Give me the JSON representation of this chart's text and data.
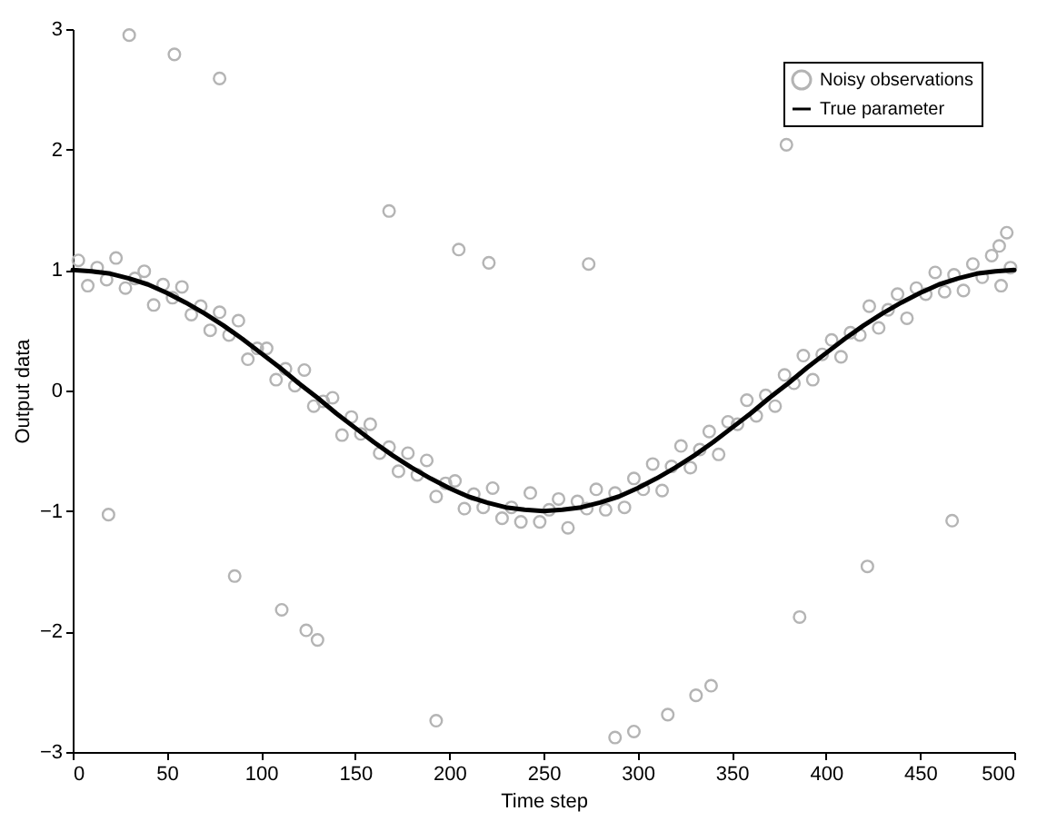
{
  "chart_data": {
    "type": "scatter",
    "xlabel": "Time step",
    "ylabel": "Output data",
    "xlim": [
      0,
      500
    ],
    "xticks": [
      0,
      50,
      100,
      150,
      200,
      250,
      300,
      350,
      400,
      450,
      500
    ],
    "ylim": [
      -3,
      3
    ],
    "yticks": [
      -3,
      -2,
      -1,
      0,
      1,
      2,
      3
    ],
    "grid": false,
    "legend": "top right",
    "line_style": "solid",
    "series": [
      {
        "name": "Noisy observations",
        "marker": "circle",
        "color": "#b4b4b4",
        "x": [
          3,
          8,
          13,
          18,
          23,
          28,
          33,
          38,
          43,
          48,
          53,
          58,
          63,
          68,
          73,
          78,
          83,
          88,
          93,
          98,
          103,
          108,
          113,
          118,
          123,
          128,
          133,
          138,
          143,
          148,
          153,
          158,
          163,
          168,
          173,
          178,
          183,
          188,
          193,
          198,
          203,
          208,
          213,
          218,
          223,
          228,
          233,
          238,
          243,
          248,
          253,
          258,
          263,
          268,
          273,
          278,
          283,
          288,
          293,
          298,
          303,
          308,
          313,
          318,
          323,
          328,
          333,
          338,
          343,
          348,
          353,
          358,
          363,
          368,
          373,
          378,
          383,
          388,
          393,
          398,
          403,
          408,
          413,
          418,
          423,
          428,
          433,
          438,
          443,
          448,
          453,
          458,
          463,
          468,
          473,
          478,
          483,
          488,
          493,
          498,
          492,
          496,
          30,
          54,
          78,
          168,
          205,
          221,
          274,
          379,
          19,
          86,
          111,
          124,
          130,
          193,
          288,
          298,
          316,
          331,
          339,
          386,
          422,
          467
        ],
        "values": [
          1.08,
          0.87,
          1.02,
          0.92,
          1.1,
          0.85,
          0.93,
          0.99,
          0.71,
          0.88,
          0.77,
          0.86,
          0.63,
          0.7,
          0.5,
          0.65,
          0.46,
          0.58,
          0.26,
          0.35,
          0.35,
          0.09,
          0.18,
          0.04,
          0.17,
          -0.13,
          -0.09,
          -0.06,
          -0.37,
          -0.22,
          -0.36,
          -0.28,
          -0.52,
          -0.47,
          -0.67,
          -0.52,
          -0.7,
          -0.58,
          -0.88,
          -0.77,
          -0.75,
          -0.98,
          -0.86,
          -0.97,
          -0.81,
          -1.06,
          -0.97,
          -1.09,
          -0.85,
          -1.09,
          -0.99,
          -0.9,
          -1.14,
          -0.92,
          -0.98,
          -0.82,
          -0.99,
          -0.85,
          -0.97,
          -0.73,
          -0.82,
          -0.61,
          -0.83,
          -0.63,
          -0.46,
          -0.64,
          -0.49,
          -0.34,
          -0.53,
          -0.26,
          -0.28,
          -0.08,
          -0.21,
          -0.04,
          -0.13,
          0.13,
          0.06,
          0.29,
          0.09,
          0.3,
          0.42,
          0.28,
          0.48,
          0.46,
          0.7,
          0.52,
          0.67,
          0.8,
          0.6,
          0.85,
          0.8,
          0.98,
          0.82,
          0.96,
          0.83,
          1.05,
          0.94,
          1.12,
          0.87,
          1.02,
          1.2,
          1.31,
          2.95,
          2.79,
          2.59,
          1.49,
          1.17,
          1.06,
          1.05,
          2.04,
          -1.03,
          -1.54,
          -1.82,
          -1.99,
          -2.07,
          -2.74,
          -2.88,
          -2.83,
          -2.69,
          -2.53,
          -2.45,
          -1.88,
          -1.46,
          -1.08
        ]
      },
      {
        "name": "True parameter",
        "type": "line",
        "color": "#000000",
        "x": [
          0,
          10,
          20,
          30,
          40,
          50,
          60,
          70,
          80,
          90,
          100,
          110,
          120,
          130,
          140,
          150,
          160,
          170,
          180,
          190,
          200,
          210,
          220,
          230,
          240,
          250,
          260,
          270,
          280,
          290,
          300,
          310,
          320,
          330,
          340,
          350,
          360,
          370,
          380,
          390,
          400,
          410,
          420,
          430,
          440,
          450,
          460,
          470,
          480,
          490,
          500
        ],
        "values": [
          1,
          0.99,
          0.97,
          0.93,
          0.88,
          0.81,
          0.73,
          0.64,
          0.54,
          0.43,
          0.31,
          0.19,
          0.06,
          -0.06,
          -0.19,
          -0.31,
          -0.43,
          -0.54,
          -0.64,
          -0.73,
          -0.81,
          -0.88,
          -0.93,
          -0.97,
          -0.99,
          -1,
          -0.99,
          -0.97,
          -0.93,
          -0.88,
          -0.81,
          -0.73,
          -0.64,
          -0.54,
          -0.43,
          -0.31,
          -0.19,
          -0.06,
          0.06,
          0.19,
          0.31,
          0.43,
          0.54,
          0.64,
          0.73,
          0.81,
          0.88,
          0.93,
          0.97,
          0.99,
          1
        ]
      }
    ]
  }
}
